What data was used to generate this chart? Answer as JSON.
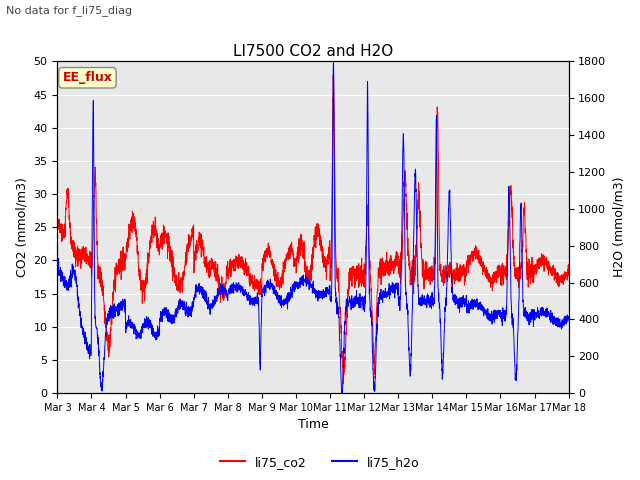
{
  "title": "LI7500 CO2 and H2O",
  "suptitle": "No data for f_li75_diag",
  "xlabel": "Time",
  "ylabel_left": "CO2 (mmol/m3)",
  "ylabel_right": "H2O (mmol/m3)",
  "ylim_left": [
    0,
    50
  ],
  "ylim_right": [
    0,
    1800
  ],
  "yticks_left": [
    0,
    5,
    10,
    15,
    20,
    25,
    30,
    35,
    40,
    45,
    50
  ],
  "yticks_right": [
    0,
    200,
    400,
    600,
    800,
    1000,
    1200,
    1400,
    1600,
    1800
  ],
  "xtick_labels": [
    "Mar 3",
    "Mar 4",
    "Mar 5",
    "Mar 6",
    "Mar 7",
    "Mar 8",
    "Mar 9",
    "Mar 10",
    "Mar 11",
    "Mar 12",
    "Mar 13",
    "Mar 14",
    "Mar 15",
    "Mar 16",
    "Mar 17",
    "Mar 18"
  ],
  "color_co2": "#ff0000",
  "color_h2o": "#0000ff",
  "legend_label_co2": "li75_co2",
  "legend_label_h2o": "li75_h2o",
  "annotation_box": "EE_flux",
  "background_color": "#ffffff",
  "plot_bg_color": "#e8e8e8",
  "grid_color": "#ffffff",
  "num_points": 3000
}
